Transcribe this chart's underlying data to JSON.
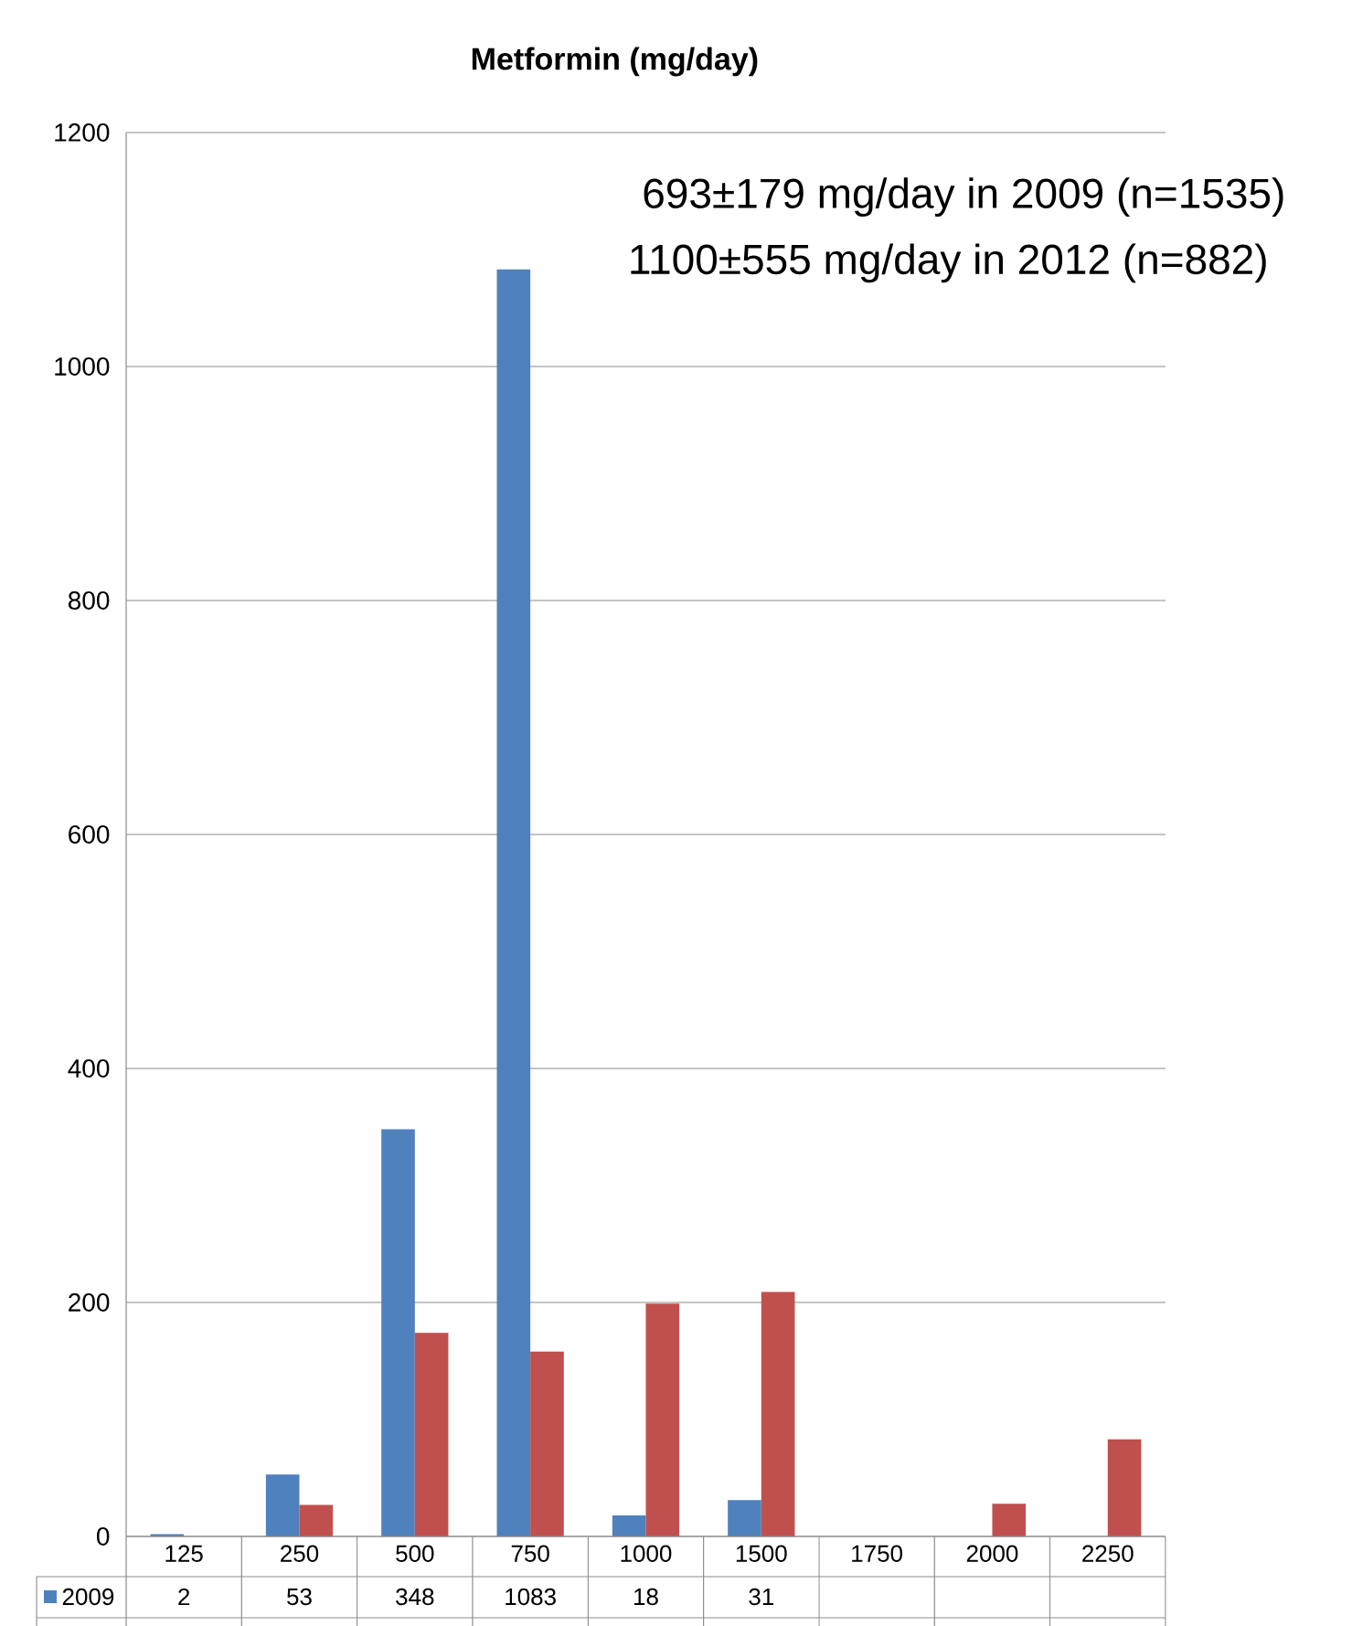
{
  "chart_data": {
    "type": "bar",
    "title": "Metformin (mg/day)",
    "categories": [
      "125",
      "250",
      "500",
      "750",
      "1000",
      "1500",
      "1750",
      "2000",
      "2250"
    ],
    "series": [
      {
        "name": "2009",
        "color": "#4f81bd",
        "values": [
          2,
          53,
          348,
          1083,
          18,
          31,
          null,
          null,
          null
        ],
        "value_labels": [
          "2",
          "53",
          "348",
          "1083",
          "18",
          "31",
          null,
          null,
          null
        ]
      },
      {
        "color": "#c0504d",
        "values": [
          null,
          27,
          174,
          158,
          199,
          209,
          null,
          28,
          83
        ]
      }
    ],
    "ylim": [
      0,
      1200
    ],
    "yticks": [
      0,
      200,
      400,
      600,
      800,
      1000,
      1200
    ],
    "grid": "y",
    "annotations": [
      "693±179 mg/day in 2009 (n=1535)",
      "1100±555 mg/day in 2012 (n=882)"
    ]
  }
}
